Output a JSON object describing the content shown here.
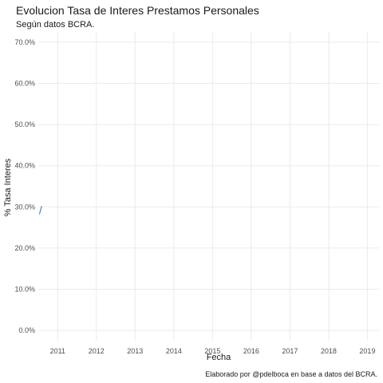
{
  "chart_data": {
    "type": "line",
    "title": "Evolucion Tasa de Interes Prestamos Personales",
    "subtitle": "Según datos BCRA.",
    "xlabel": "Fecha",
    "ylabel": "% Tasa Interes",
    "caption": "Elaborado por @pdelboca en base a datos del BCRA.",
    "x_ticks": [
      "2011",
      "2012",
      "2013",
      "2014",
      "2015",
      "2016",
      "2017",
      "2018",
      "2019"
    ],
    "y_ticks": [
      "0.0%",
      "10.0%",
      "20.0%",
      "30.0%",
      "40.0%",
      "50.0%",
      "60.0%",
      "70.0%"
    ],
    "xlim": [
      2010.5,
      2019.3
    ],
    "ylim": [
      -2.5,
      72.5
    ],
    "grid": true,
    "series": [
      {
        "color": "#3a6ea5",
        "x": [
          2010.53,
          2010.545,
          2010.56,
          2010.575,
          2010.59
        ],
        "y": [
          28.2,
          28.8,
          29.3,
          29.8,
          30.2
        ]
      }
    ]
  }
}
